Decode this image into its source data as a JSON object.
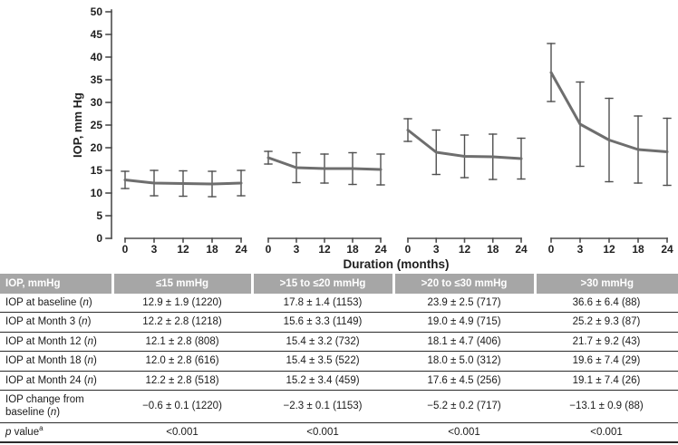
{
  "chart_data": {
    "type": "line",
    "title": "",
    "xlabel": "Duration (months)",
    "ylabel": "IOP, mm Hg",
    "ylim": [
      0,
      50
    ],
    "ytick_step": 5,
    "grid": false,
    "legend": "none",
    "x_ticklabels": [
      "0",
      "3",
      "12",
      "18",
      "24"
    ],
    "panels": [
      {
        "group": "≤15 mmHg",
        "means": [
          12.9,
          12.2,
          12.1,
          12.0,
          12.2
        ],
        "sd": [
          1.9,
          2.8,
          2.8,
          2.8,
          2.8
        ]
      },
      {
        "group": ">15 to ≤20 mmHg",
        "means": [
          17.8,
          15.6,
          15.4,
          15.4,
          15.2
        ],
        "sd": [
          1.4,
          3.3,
          3.2,
          3.5,
          3.4
        ]
      },
      {
        "group": ">20 to ≤30 mmHg",
        "means": [
          23.9,
          19.0,
          18.1,
          18.0,
          17.6
        ],
        "sd": [
          2.5,
          4.9,
          4.7,
          5.0,
          4.5
        ]
      },
      {
        "group": ">30 mmHg",
        "means": [
          36.6,
          25.2,
          21.7,
          19.6,
          19.1
        ],
        "sd": [
          6.4,
          9.3,
          9.2,
          7.4,
          7.4
        ]
      }
    ],
    "line_color": "#6e6e6e",
    "error_bar_color": "#4f4f4f",
    "axis_color": "#4d4d4d",
    "text_color": "#1f1f1f"
  },
  "table": {
    "header_bg": "#a6a6a6",
    "header_text_color": "#ffffff",
    "headers": [
      "IOP, mmHg",
      "≤15 mmHg",
      ">15 to ≤20 mmHg",
      ">20 to ≤30 mmHg",
      ">30 mmHg"
    ],
    "rows": [
      {
        "label": "IOP at baseline (n)",
        "values": [
          "12.9 ± 1.9 (1220)",
          "17.8 ± 1.4 (1153)",
          "23.9 ± 2.5 (717)",
          "36.6 ± 6.4 (88)"
        ]
      },
      {
        "label": "IOP at Month 3 (n)",
        "values": [
          "12.2 ± 2.8 (1218)",
          "15.6 ± 3.3 (1149)",
          "19.0 ± 4.9 (715)",
          "25.2 ± 9.3 (87)"
        ]
      },
      {
        "label": "IOP at Month 12 (n)",
        "values": [
          "12.1 ± 2.8 (808)",
          "15.4 ± 3.2 (732)",
          "18.1 ± 4.7 (406)",
          "21.7 ± 9.2 (43)"
        ]
      },
      {
        "label": "IOP at Month 18 (n)",
        "values": [
          "12.0 ± 2.8 (616)",
          "15.4 ± 3.5 (522)",
          "18.0 ± 5.0 (312)",
          "19.6 ± 7.4 (29)"
        ]
      },
      {
        "label": "IOP at Month 24 (n)",
        "values": [
          "12.2 ± 2.8 (518)",
          "15.2 ± 3.4 (459)",
          "17.6 ± 4.5 (256)",
          "19.1 ± 7.4 (26)"
        ]
      },
      {
        "label": "IOP change from baseline (n)",
        "values": [
          "−0.6 ± 0.1 (1220)",
          "−2.3 ± 0.1 (1153)",
          "−5.2 ± 0.2 (717)",
          "−13.1 ± 0.9 (88)"
        ]
      },
      {
        "label": "p value",
        "sup": "a",
        "values": [
          "<0.001",
          "<0.001",
          "<0.001",
          "<0.001"
        ]
      }
    ]
  }
}
